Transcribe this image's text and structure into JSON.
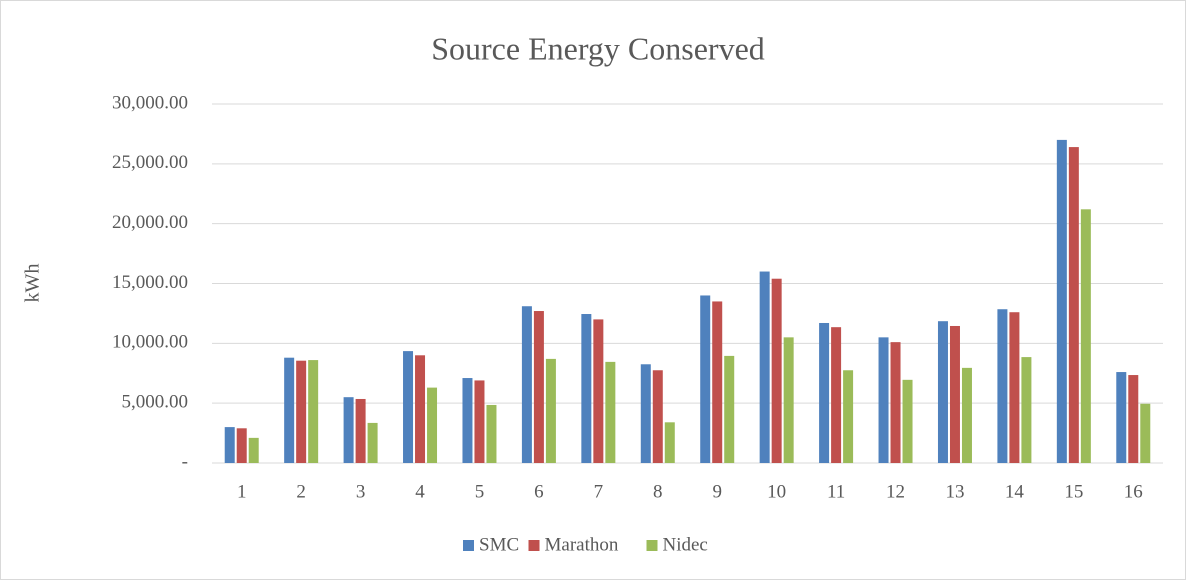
{
  "chart_data": {
    "type": "bar",
    "title": "Source Energy Conserved",
    "y_label": "kWh",
    "categories": [
      "1",
      "2",
      "3",
      "4",
      "5",
      "6",
      "7",
      "8",
      "9",
      "10",
      "11",
      "12",
      "13",
      "14",
      "15",
      "16"
    ],
    "series": [
      {
        "name": "SMC",
        "color": "#4f81bd",
        "values": [
          3000,
          8800,
          5500,
          9350,
          7100,
          13100,
          12450,
          8250,
          14000,
          16000,
          11700,
          10500,
          11850,
          12850,
          27000,
          7600
        ]
      },
      {
        "name": "Marathon",
        "color": "#c0504d",
        "values": [
          2900,
          8550,
          5350,
          9000,
          6900,
          12700,
          12000,
          7750,
          13500,
          15400,
          11350,
          10100,
          11450,
          12600,
          26400,
          7350
        ]
      },
      {
        "name": "Nidec",
        "color": "#9bbb59",
        "values": [
          2100,
          8600,
          3350,
          6300,
          4850,
          8700,
          8450,
          3400,
          8950,
          10500,
          7750,
          6950,
          7950,
          8850,
          21200,
          4950
        ]
      }
    ],
    "ylim": [
      0,
      30000
    ],
    "yticks": [
      {
        "value": 0,
        "label": "-"
      },
      {
        "value": 5000,
        "label": "5,000.00"
      },
      {
        "value": 10000,
        "label": "10,000.00"
      },
      {
        "value": 15000,
        "label": "15,000.00"
      },
      {
        "value": 20000,
        "label": "20,000.00"
      },
      {
        "value": 25000,
        "label": "25,000.00"
      },
      {
        "value": 30000,
        "label": "30,000.00"
      }
    ],
    "grid": true,
    "legend": "bottom"
  }
}
